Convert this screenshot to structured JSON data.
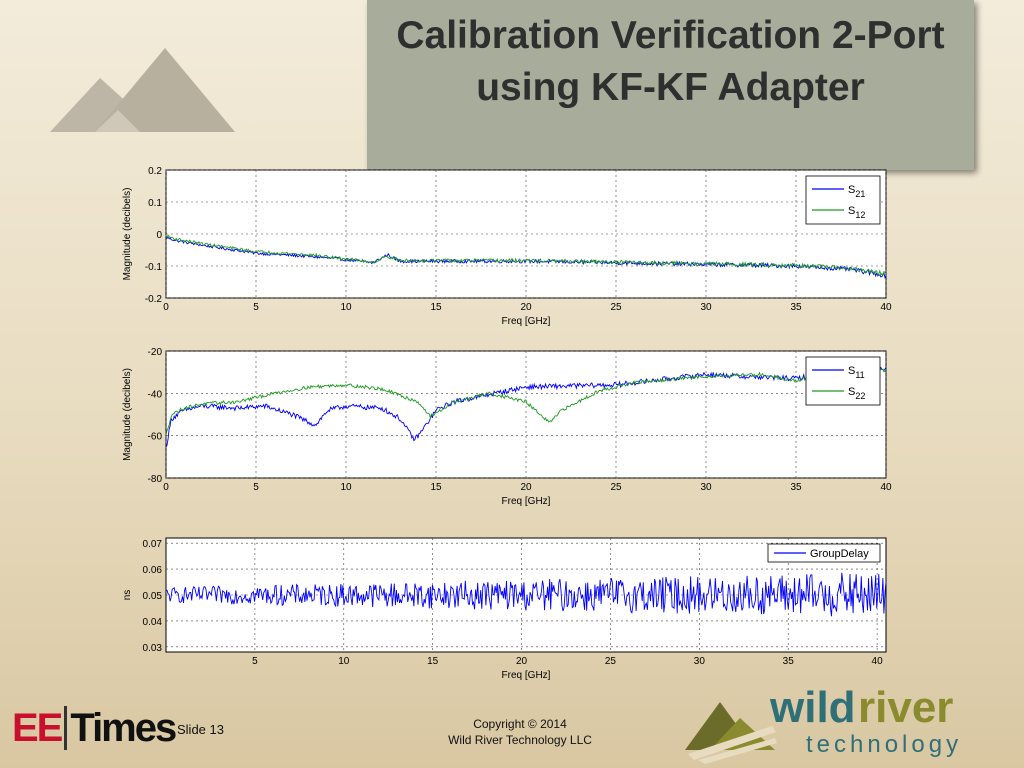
{
  "slide": {
    "title": "Calibration Verification 2-Port using KF-KF Adapter",
    "slide_label": "Slide 13",
    "copyright_line1": "Copyright © 2014",
    "copyright_line2": "Wild River Technology LLC",
    "brand_left_ee": "EE",
    "brand_left_times": "Times",
    "brand_right_word1": "wild",
    "brand_right_word2": "river",
    "brand_right_word3": "technology",
    "colors": {
      "blue": "#0000ff",
      "green": "#1e9b1e",
      "title_box": "#a8ad9b",
      "brand_red": "#c8102e",
      "brand_olive": "#8a8a2e",
      "brand_teal": "#2f6f78"
    }
  },
  "chart_data": [
    {
      "type": "line",
      "xlabel": "Freq [GHz]",
      "ylabel": "Magnitude (decibels)",
      "xlim": [
        0,
        40
      ],
      "ylim": [
        -0.2,
        0.2
      ],
      "xticks": [
        0,
        5,
        10,
        15,
        20,
        25,
        30,
        35,
        40
      ],
      "yticks": [
        -0.2,
        -0.1,
        0,
        0.1,
        0.2
      ],
      "grid": true,
      "legend": "top-right",
      "series": [
        {
          "name": "S21",
          "name_base": "S",
          "name_sub": "21",
          "color": "#0000ff",
          "noise": 0.004,
          "noise_growth": 0.003,
          "x": [
            0,
            0.5,
            2,
            5,
            8,
            10,
            11.5,
            12.3,
            13,
            15,
            20,
            25,
            30,
            35,
            38,
            40
          ],
          "y": [
            -0.01,
            -0.02,
            -0.035,
            -0.06,
            -0.07,
            -0.08,
            -0.09,
            -0.065,
            -0.085,
            -0.085,
            -0.085,
            -0.09,
            -0.095,
            -0.1,
            -0.11,
            -0.13
          ]
        },
        {
          "name": "S12",
          "name_base": "S",
          "name_sub": "12",
          "color": "#1e9b1e",
          "noise": 0.004,
          "noise_growth": 0.003,
          "x": [
            0,
            0.5,
            2,
            5,
            8,
            10,
            11.5,
            12.3,
            13,
            15,
            20,
            25,
            30,
            35,
            38,
            40
          ],
          "y": [
            -0.005,
            -0.015,
            -0.03,
            -0.055,
            -0.065,
            -0.078,
            -0.088,
            -0.07,
            -0.083,
            -0.083,
            -0.083,
            -0.088,
            -0.093,
            -0.098,
            -0.108,
            -0.125
          ]
        }
      ]
    },
    {
      "type": "line",
      "xlabel": "Freq [GHz]",
      "ylabel": "Magnitude (decibels)",
      "xlim": [
        0,
        40
      ],
      "ylim": [
        -80,
        -20
      ],
      "xticks": [
        0,
        5,
        10,
        15,
        20,
        25,
        30,
        35,
        40
      ],
      "yticks": [
        -80,
        -60,
        -40,
        -20
      ],
      "grid": true,
      "legend": "top-right",
      "series": [
        {
          "name": "S11",
          "name_base": "S",
          "name_sub": "11",
          "color": "#0000ff",
          "noise": 1.2,
          "noise_growth": 0,
          "x": [
            0,
            0.3,
            1,
            2,
            4,
            5.5,
            7,
            8.3,
            9,
            10,
            12,
            13,
            13.8,
            14.2,
            15,
            16,
            20,
            25,
            30,
            32,
            35,
            37,
            40
          ],
          "y": [
            -66,
            -52,
            -48,
            -46,
            -47,
            -46,
            -50,
            -55,
            -48,
            -46,
            -47,
            -52,
            -62,
            -58,
            -48,
            -44,
            -37,
            -36,
            -31,
            -32,
            -33,
            -30,
            -28
          ]
        },
        {
          "name": "S22",
          "name_base": "S",
          "name_sub": "22",
          "color": "#1e9b1e",
          "noise": 0.8,
          "noise_growth": 0,
          "x": [
            0,
            0.3,
            1,
            2,
            4,
            6,
            8,
            10,
            12,
            14,
            14.7,
            16,
            18,
            20,
            21.3,
            22,
            24,
            26,
            30,
            33,
            35,
            37,
            40
          ],
          "y": [
            -60,
            -50,
            -47,
            -45,
            -44,
            -40,
            -37,
            -36,
            -38,
            -44,
            -51,
            -44,
            -40,
            -44,
            -54,
            -48,
            -39,
            -35,
            -32,
            -31,
            -34,
            -30,
            -29
          ]
        }
      ]
    },
    {
      "type": "line",
      "xlabel": "Freq [GHz]",
      "ylabel": "ns",
      "xlim": [
        0,
        40.5
      ],
      "ylim": [
        0.028,
        0.072
      ],
      "xticks": [
        5,
        10,
        15,
        20,
        25,
        30,
        35,
        40
      ],
      "yticks": [
        0.03,
        0.04,
        0.05,
        0.06,
        0.07
      ],
      "grid": true,
      "legend": "top-right",
      "series": [
        {
          "name": "GroupDelay",
          "name_base": "GroupDelay",
          "name_sub": "",
          "color": "#0000ff",
          "noise": 0.003,
          "noise_growth": 0.006,
          "x": [
            0,
            40
          ],
          "y": [
            0.05,
            0.05
          ]
        }
      ]
    }
  ]
}
